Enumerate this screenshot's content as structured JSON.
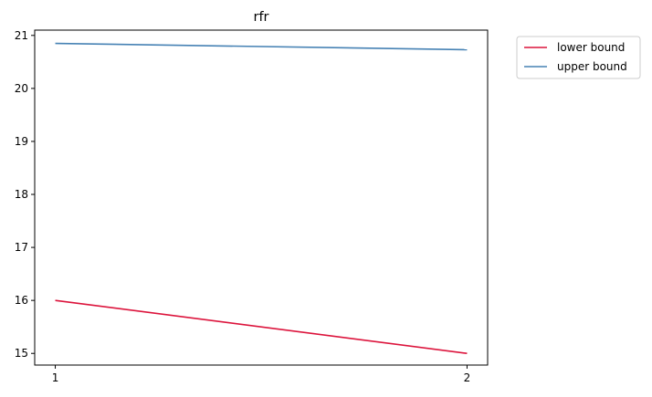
{
  "chart_data": {
    "type": "line",
    "title": "rfr",
    "xlabel": "",
    "ylabel": "",
    "x": [
      1,
      2
    ],
    "x_ticks": [
      "1",
      "2"
    ],
    "y_ticks": [
      "15",
      "16",
      "17",
      "18",
      "19",
      "20",
      "21"
    ],
    "ylim": [
      14.78,
      21.1
    ],
    "xlim": [
      0.95,
      2.05
    ],
    "grid": false,
    "legend_position": "outside-top-right",
    "series": [
      {
        "name": "lower bound",
        "values": [
          16.0,
          15.0
        ],
        "color": "#dc143c"
      },
      {
        "name": "upper bound",
        "values": [
          20.85,
          20.73
        ],
        "color": "#4682b4"
      }
    ]
  }
}
